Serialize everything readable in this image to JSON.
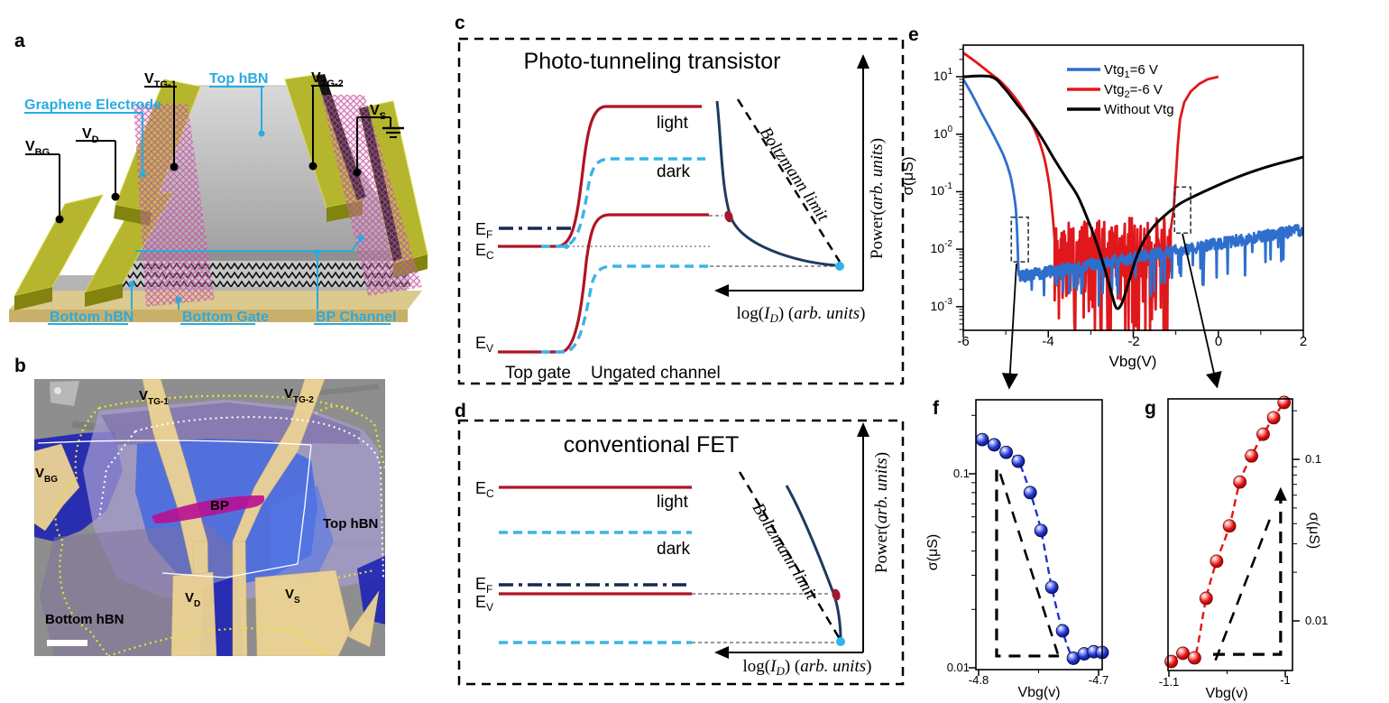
{
  "colors": {
    "accent_cyan": "#29abe2",
    "band_red": "#b01325",
    "band_cyan": "#3cb4e6",
    "navy": "#1e3a5f",
    "series_blue": "#2e6fce",
    "series_red": "#e0181c",
    "series_black": "#000000",
    "ball_blue": "#2233cc",
    "ball_red": "#e81212",
    "gold_bar": "#b5b52e",
    "gold_pad": "#edd394",
    "bp_magenta": "#b80f92",
    "flake_lavender": "#a89ed2",
    "flake_royal": "#3c64e4",
    "flake_navy": "#2126b4"
  },
  "panels": {
    "a": {
      "label": "a",
      "vbg": {
        "base": "V",
        "sub": "BG"
      },
      "vd": {
        "base": "V",
        "sub": "D"
      },
      "vtg1": {
        "base": "V",
        "sub": "TG-1"
      },
      "vtg2": {
        "base": "V",
        "sub": "TG-2"
      },
      "vs": {
        "base": "V",
        "sub": "S"
      },
      "graphene": "Graphene Electrode",
      "top_hbn": "Top hBN",
      "bottom_hbn": "Bottom hBN",
      "bottom_gate": "Bottom Gate",
      "bp_channel": "BP Channel"
    },
    "b": {
      "label": "b",
      "vtg1": {
        "base": "V",
        "sub": "TG-1"
      },
      "vtg2": {
        "base": "V",
        "sub": "TG-2"
      },
      "vbg": {
        "base": "V",
        "sub": "BG"
      },
      "vd": {
        "base": "V",
        "sub": "D"
      },
      "vs": {
        "base": "V",
        "sub": "S"
      },
      "bp": "BP",
      "top_hbn": "Top hBN",
      "bottom_hbn": "Bottom hBN"
    },
    "c": {
      "label": "c",
      "title": "Photo-tunneling transistor",
      "light": "light",
      "dark": "dark",
      "ef": {
        "base": "E",
        "sub": "F"
      },
      "ec": {
        "base": "E",
        "sub": "C"
      },
      "ev": {
        "base": "E",
        "sub": "V"
      },
      "top_gate": "Top gate",
      "ungated": "Ungated channel",
      "boltzmann": "Boltzmann limit",
      "power": {
        "pre": "Power(",
        "units": "arb. units",
        "post": ")"
      },
      "logid": {
        "p1": "log(",
        "i": "I",
        "sub": "D",
        "p2": ") (",
        "units": "arb. units",
        "p3": ")"
      }
    },
    "d": {
      "label": "d",
      "title": "conventional FET",
      "light": "light",
      "dark": "dark",
      "ef": {
        "base": "E",
        "sub": "F"
      },
      "ec": {
        "base": "E",
        "sub": "C"
      },
      "ev": {
        "base": "E",
        "sub": "V"
      },
      "boltzmann": "Boltzmann limit",
      "power": {
        "pre": "Power(",
        "units": "arb. units",
        "post": ")"
      },
      "logid": {
        "p1": "log(",
        "i": "I",
        "sub": "D",
        "p2": ") (",
        "units": "arb. units",
        "p3": ")"
      }
    },
    "e": {
      "label": "e",
      "legend": [
        {
          "pre": "Vtg",
          "sub": "1",
          "post": "=6 V",
          "color": "#2e6fce"
        },
        {
          "pre": "Vtg",
          "sub": "2",
          "post": "=-6 V",
          "color": "#e0181c"
        },
        {
          "pre": "Without Vtg",
          "sub": "",
          "post": "",
          "color": "#000000"
        }
      ],
      "ylabel": "σ(μS)",
      "xlabel": "Vbg(V)",
      "ytick_base": "10",
      "ytick_exps": [
        "1",
        "0",
        "-1",
        "-2",
        "-3"
      ],
      "xticks": [
        "-6",
        "-4",
        "-2",
        "0",
        "2"
      ]
    },
    "f": {
      "label": "f",
      "ylabel": "σ(μS)",
      "xlabel": "Vbg(v)",
      "yticks": [
        "0.1",
        "0.01"
      ],
      "xticks": [
        "-4.8",
        "-4.7"
      ]
    },
    "g": {
      "label": "g",
      "ylabel": "σ(μS)",
      "xlabel": "Vbg(v)",
      "yticks": [
        "0.1",
        "0.01"
      ],
      "xticks": [
        "-1.1",
        "-1"
      ]
    }
  },
  "chart_data": [
    {
      "panel": "e",
      "type": "line",
      "title": "",
      "xlabel": "Vbg(V)",
      "ylabel": "σ(μS)",
      "x_range": [
        -6,
        2
      ],
      "ylog_range": [
        -3.42,
        1.55
      ],
      "grid": false,
      "legend_position": "top-center",
      "series": [
        {
          "name": "Vtg1=6 V",
          "color": "#2e6fce",
          "width": 2.8,
          "smooth": [
            [
              -6,
              9
            ],
            [
              -5.8,
              5
            ],
            [
              -5.55,
              2.2
            ],
            [
              -5.3,
              1.0
            ],
            [
              -5.05,
              0.42
            ],
            [
              -4.9,
              0.2
            ],
            [
              -4.82,
              0.1
            ],
            [
              -4.77,
              0.055
            ],
            [
              -4.74,
              0.025
            ],
            [
              -4.72,
              0.011
            ],
            [
              -4.705,
              0.005
            ],
            [
              -4.69,
              0.0035
            ]
          ],
          "noise": {
            "x0": -4.69,
            "x1": 2,
            "log0": -2.48,
            "log1": -1.66,
            "amp": 0.1,
            "spike_prob": 0.93,
            "spike_len": 0.5,
            "seed": 3,
            "step": 0.01
          }
        },
        {
          "name": "Vtg2=-6 V",
          "color": "#e0181c",
          "width": 2.8,
          "smooth": [
            [
              -6,
              26
            ],
            [
              -5.7,
              18
            ],
            [
              -5.4,
              12
            ],
            [
              -5.1,
              8
            ],
            [
              -4.8,
              4.5
            ],
            [
              -4.55,
              2.4
            ],
            [
              -4.3,
              1.1
            ],
            [
              -4.1,
              0.4
            ],
            [
              -3.97,
              0.12
            ],
            [
              -3.9,
              0.04
            ],
            [
              -3.85,
              0.015
            ]
          ],
          "noise": {
            "x0": -3.85,
            "x1": -1.12,
            "log0": -2.1,
            "log1": -1.95,
            "amp": 0.55,
            "spike_prob": 0.8,
            "spike_len": 1.3,
            "seed": 11,
            "step": 0.011
          },
          "smooth2": [
            [
              -1.12,
              0.022
            ],
            [
              -1.05,
              0.05
            ],
            [
              -1.0,
              0.18
            ],
            [
              -0.95,
              0.7
            ],
            [
              -0.9,
              1.8
            ],
            [
              -0.8,
              3.6
            ],
            [
              -0.65,
              5.5
            ],
            [
              -0.45,
              7.5
            ],
            [
              -0.25,
              9.0
            ],
            [
              -0.05,
              9.8
            ],
            [
              0,
              10
            ]
          ]
        },
        {
          "name": "Without Vtg",
          "color": "#000000",
          "width": 3,
          "smooth": [
            [
              -6,
              10
            ],
            [
              -5.35,
              10
            ],
            [
              -5.05,
              6.5
            ],
            [
              -4.75,
              3.4
            ],
            [
              -4.45,
              1.8
            ],
            [
              -4.15,
              0.85
            ],
            [
              -3.85,
              0.36
            ],
            [
              -3.55,
              0.16
            ],
            [
              -3.3,
              0.082
            ],
            [
              -3.05,
              0.03
            ],
            [
              -2.85,
              0.012
            ],
            [
              -2.65,
              0.004
            ],
            [
              -2.5,
              0.0016
            ],
            [
              -2.4,
              0.00095
            ],
            [
              -2.28,
              0.0011
            ],
            [
              -2.1,
              0.0028
            ],
            [
              -1.95,
              0.0065
            ],
            [
              -1.75,
              0.014
            ],
            [
              -1.5,
              0.026
            ],
            [
              -1.2,
              0.042
            ],
            [
              -0.9,
              0.062
            ],
            [
              -0.5,
              0.088
            ],
            [
              0,
              0.13
            ],
            [
              0.5,
              0.185
            ],
            [
              1,
              0.25
            ],
            [
              1.5,
              0.32
            ],
            [
              2,
              0.4
            ]
          ]
        }
      ],
      "zoom_boxes": [
        {
          "x": [
            -4.87,
            -4.47
          ],
          "y": [
            0.006,
            0.036
          ],
          "target": "f"
        },
        {
          "x": [
            -1.03,
            -0.65
          ],
          "y": [
            0.019,
            0.12
          ],
          "target": "g"
        }
      ]
    },
    {
      "panel": "f",
      "type": "scatter",
      "marker": "sphere",
      "color": "#2233cc",
      "xlabel": "Vbg(v)",
      "ylabel": "σ(μS)",
      "x_range": [
        -4.81,
        -4.693
      ],
      "y_range": [
        0.0098,
        0.24
      ],
      "x_ticks": [
        -4.8,
        -4.7
      ],
      "y_ticks": [
        0.1,
        0.01
      ],
      "points": [
        [
          -4.797,
          0.15
        ],
        [
          -4.787,
          0.141
        ],
        [
          -4.777,
          0.129
        ],
        [
          -4.767,
          0.116
        ],
        [
          -4.757,
          0.08
        ],
        [
          -4.748,
          0.051
        ],
        [
          -4.739,
          0.026
        ],
        [
          -4.73,
          0.0155
        ],
        [
          -4.721,
          0.0112
        ],
        [
          -4.712,
          0.0118
        ],
        [
          -4.704,
          0.0121
        ],
        [
          -4.697,
          0.012
        ]
      ],
      "slope_triangle": {
        "x_left": -4.785,
        "x_right": -4.733,
        "y_bottom": 0.0115,
        "y_top": 0.105,
        "hypotenuse": [
          [
            -4.782,
            0.1
          ],
          [
            -4.734,
            0.0118
          ]
        ],
        "right_angle": "bottom-left"
      }
    },
    {
      "panel": "g",
      "type": "scatter",
      "marker": "sphere",
      "color": "#e81212",
      "xlabel": "Vbg(v)",
      "ylabel": "σ(μS)",
      "x_range": [
        -1.102,
        -0.997
      ],
      "y_range": [
        0.0049,
        0.237
      ],
      "x_ticks": [
        -1.1,
        -1
      ],
      "y_ticks": [
        0.1,
        0.01
      ],
      "points": [
        [
          -1.098,
          0.0056
        ],
        [
          -1.088,
          0.0063
        ],
        [
          -1.078,
          0.0059
        ],
        [
          -1.068,
          0.0138
        ],
        [
          -1.059,
          0.0234
        ],
        [
          -1.048,
          0.0387
        ],
        [
          -1.039,
          0.0724
        ],
        [
          -1.029,
          0.105
        ],
        [
          -1.019,
          0.143
        ],
        [
          -1.01,
          0.181
        ],
        [
          -1.001,
          0.225
        ]
      ],
      "slope_triangle": {
        "x_left": -1.062,
        "x_right": -1.004,
        "y_bottom": 0.0062,
        "y_top": 0.06,
        "hypotenuse": [
          [
            -1.06,
            0.0057
          ],
          [
            -1.012,
            0.045
          ]
        ],
        "right_angle": "bottom-right",
        "arrow_top": true
      }
    }
  ]
}
